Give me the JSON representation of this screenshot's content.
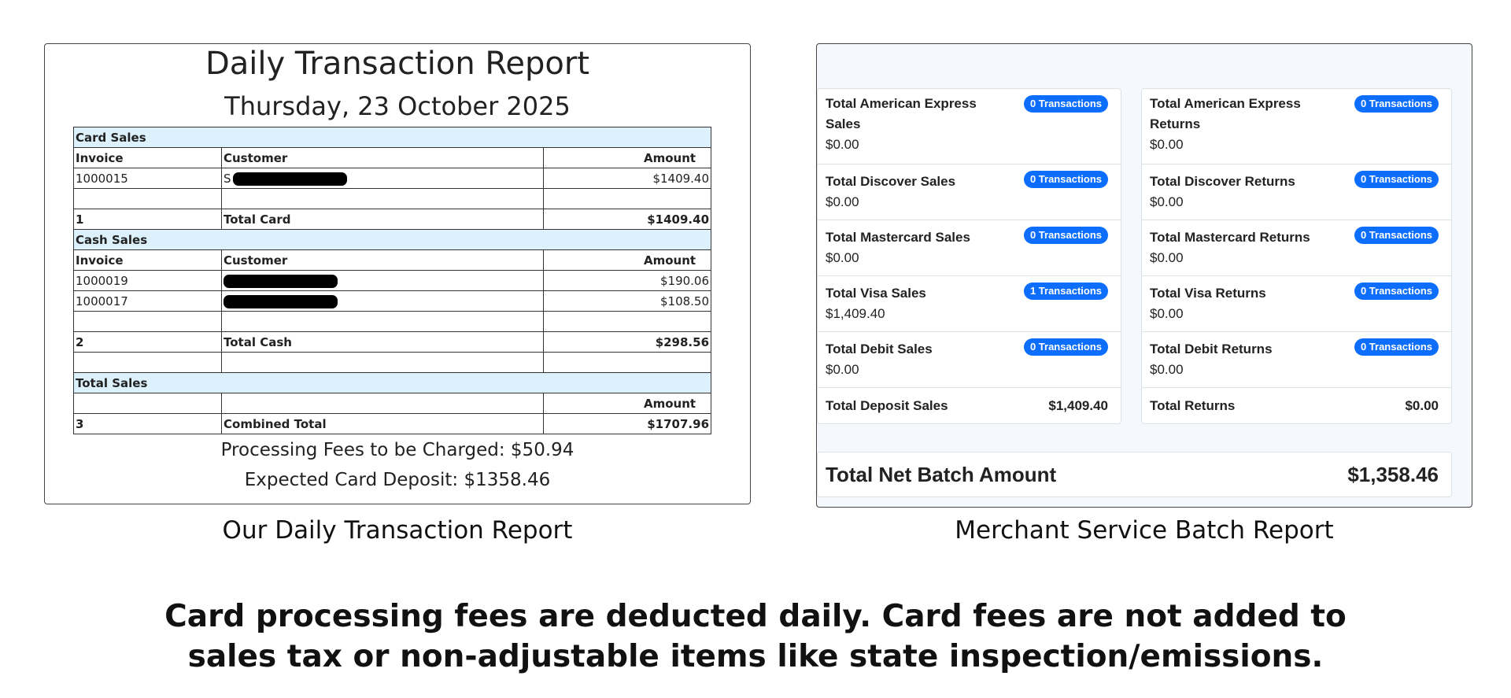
{
  "left_report": {
    "title": "Daily Transaction Report",
    "date": "Thursday, 23 October 2025",
    "card_sales": {
      "section": "Card Sales",
      "col_invoice": "Invoice",
      "col_customer": "Customer",
      "col_amount": "Amount",
      "rows": [
        {
          "invoice": "1000015",
          "customer_initial": "S",
          "amount": "$1409.40"
        }
      ],
      "total_count": "1",
      "total_label": "Total Card",
      "total_amount": "$1409.40"
    },
    "cash_sales": {
      "section": "Cash Sales",
      "col_invoice": "Invoice",
      "col_customer": "Customer",
      "col_amount": "Amount",
      "rows": [
        {
          "invoice": "1000019",
          "customer_initial": "",
          "amount": "$190.06"
        },
        {
          "invoice": "1000017",
          "customer_initial": "",
          "amount": "$108.50"
        }
      ],
      "total_count": "2",
      "total_label": "Total Cash",
      "total_amount": "$298.56"
    },
    "total_sales": {
      "section": "Total Sales",
      "col_amount": "Amount",
      "count": "3",
      "label": "Combined Total",
      "amount": "$1707.96"
    },
    "fees_line": "Processing Fees to be Charged: $50.94",
    "deposit_line": "Expected Card Deposit: $1358.46",
    "caption": "Our Daily Transaction Report"
  },
  "right_report": {
    "sales": [
      {
        "label": "Total American Express Sales",
        "badge": "0 Transactions",
        "value": "$0.00"
      },
      {
        "label": "Total Discover Sales",
        "badge": "0 Transactions",
        "value": "$0.00"
      },
      {
        "label": "Total Mastercard Sales",
        "badge": "0 Transactions",
        "value": "$0.00"
      },
      {
        "label": "Total Visa Sales",
        "badge": "1 Transactions",
        "value": "$1,409.40"
      },
      {
        "label": "Total Debit Sales",
        "badge": "0 Transactions",
        "value": "$0.00"
      }
    ],
    "sales_total": {
      "label": "Total Deposit Sales",
      "value": "$1,409.40"
    },
    "returns": [
      {
        "label": "Total American Express Returns",
        "badge": "0 Transactions",
        "value": "$0.00"
      },
      {
        "label": "Total Discover Returns",
        "badge": "0 Transactions",
        "value": "$0.00"
      },
      {
        "label": "Total Mastercard Returns",
        "badge": "0 Transactions",
        "value": "$0.00"
      },
      {
        "label": "Total Visa Returns",
        "badge": "0 Transactions",
        "value": "$0.00"
      },
      {
        "label": "Total Debit Returns",
        "badge": "0 Transactions",
        "value": "$0.00"
      }
    ],
    "returns_total": {
      "label": "Total Returns",
      "value": "$0.00"
    },
    "net_label": "Total Net Batch Amount",
    "net_value": "$1,358.46",
    "caption": "Merchant Service Batch Report"
  },
  "footer_note": {
    "line1": "Card processing fees are deducted daily. Card fees are not added to",
    "line2": "sales tax or non-adjustable items like state inspection/emissions."
  },
  "colors": {
    "badge": "#0d6efd",
    "section_header": "#dcf1fb",
    "batch_background": "#f5f8fc"
  }
}
